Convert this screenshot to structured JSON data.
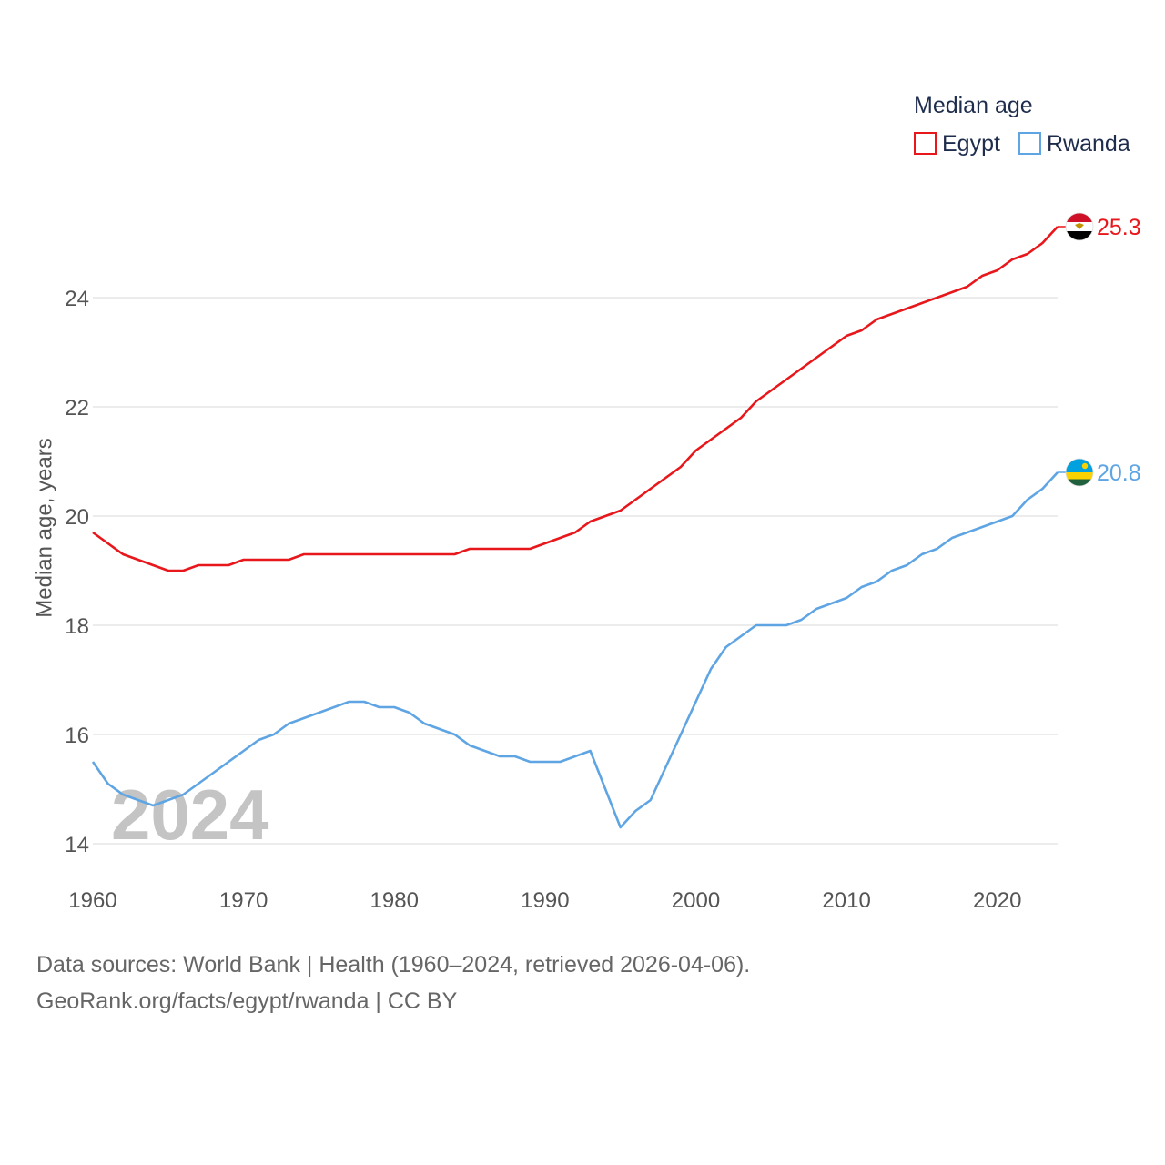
{
  "chart_data": {
    "type": "line",
    "title": "Median age",
    "ylabel": "Median age, years",
    "xlabel": "",
    "xlim": [
      1960,
      2024
    ],
    "ylim": [
      13.5,
      25.6
    ],
    "yticks": [
      14,
      16,
      18,
      20,
      22,
      24
    ],
    "xticks": [
      1960,
      1970,
      1980,
      1990,
      2000,
      2010,
      2020
    ],
    "grid": true,
    "legend_position": "top-right",
    "year_label": "2024",
    "x": [
      1960,
      1961,
      1962,
      1963,
      1964,
      1965,
      1966,
      1967,
      1968,
      1969,
      1970,
      1971,
      1972,
      1973,
      1974,
      1975,
      1976,
      1977,
      1978,
      1979,
      1980,
      1981,
      1982,
      1983,
      1984,
      1985,
      1986,
      1987,
      1988,
      1989,
      1990,
      1991,
      1992,
      1993,
      1994,
      1995,
      1996,
      1997,
      1998,
      1999,
      2000,
      2001,
      2002,
      2003,
      2004,
      2005,
      2006,
      2007,
      2008,
      2009,
      2010,
      2011,
      2012,
      2013,
      2014,
      2015,
      2016,
      2017,
      2018,
      2019,
      2020,
      2021,
      2022,
      2023,
      2024
    ],
    "series": [
      {
        "name": "Egypt",
        "color": "#e8171b",
        "end_label": "25.3",
        "values": [
          19.7,
          19.5,
          19.3,
          19.2,
          19.1,
          19.0,
          19.0,
          19.1,
          19.1,
          19.1,
          19.2,
          19.2,
          19.2,
          19.2,
          19.3,
          19.3,
          19.3,
          19.3,
          19.3,
          19.3,
          19.3,
          19.3,
          19.3,
          19.3,
          19.3,
          19.4,
          19.4,
          19.4,
          19.4,
          19.4,
          19.5,
          19.6,
          19.7,
          19.9,
          20.0,
          20.1,
          20.3,
          20.5,
          20.7,
          20.9,
          21.2,
          21.4,
          21.6,
          21.8,
          22.1,
          22.3,
          22.5,
          22.7,
          22.9,
          23.1,
          23.3,
          23.4,
          23.6,
          23.7,
          23.8,
          23.9,
          24.0,
          24.1,
          24.2,
          24.4,
          24.5,
          24.7,
          24.8,
          25.0,
          25.3
        ]
      },
      {
        "name": "Rwanda",
        "color": "#5fa5e3",
        "end_label": "20.8",
        "values": [
          15.5,
          15.1,
          14.9,
          14.8,
          14.7,
          14.8,
          14.9,
          15.1,
          15.3,
          15.5,
          15.7,
          15.9,
          16.0,
          16.2,
          16.3,
          16.4,
          16.5,
          16.6,
          16.6,
          16.5,
          16.5,
          16.4,
          16.2,
          16.1,
          16.0,
          15.8,
          15.7,
          15.6,
          15.6,
          15.5,
          15.5,
          15.5,
          15.6,
          15.7,
          15.0,
          14.3,
          14.6,
          14.8,
          15.4,
          16.0,
          16.6,
          17.2,
          17.6,
          17.8,
          18.0,
          18.0,
          18.0,
          18.1,
          18.3,
          18.4,
          18.5,
          18.7,
          18.8,
          19.0,
          19.1,
          19.3,
          19.4,
          19.6,
          19.7,
          19.8,
          19.9,
          20.0,
          20.3,
          20.5,
          20.8
        ]
      }
    ]
  },
  "footer": {
    "line1": "Data sources: World Bank | Health (1960–2024, retrieved 2026-04-06).",
    "line2": "GeoRank.org/facts/egypt/rwanda | CC BY"
  },
  "flags": {
    "egypt": {
      "colors": [
        "#ce1126",
        "#ffffff",
        "#000000"
      ],
      "emblem": "#c09300"
    },
    "rwanda": {
      "colors": [
        "#20603d",
        "#fad201",
        "#00a1de"
      ],
      "sun": "#fad201"
    }
  }
}
